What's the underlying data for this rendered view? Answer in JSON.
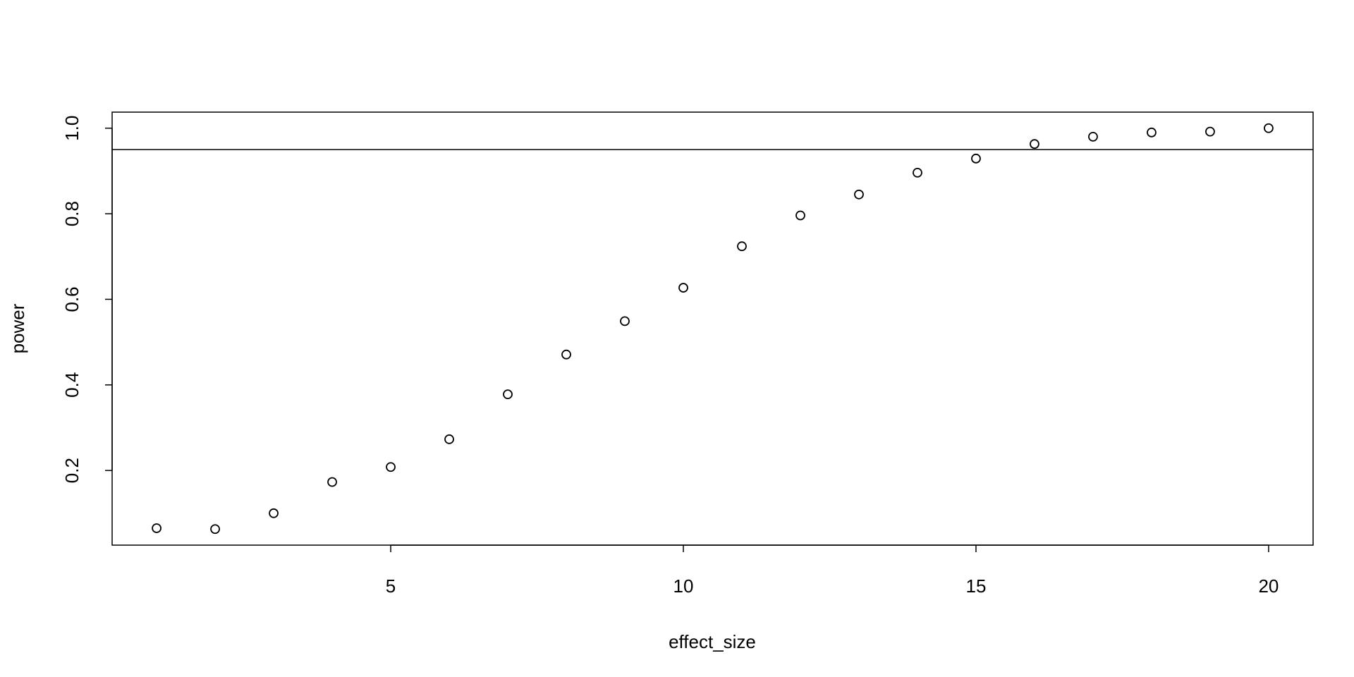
{
  "chart_data": {
    "type": "scatter",
    "x_label": "effect_size",
    "y_label": "power",
    "x": [
      1,
      2,
      3,
      4,
      5,
      6,
      7,
      8,
      9,
      10,
      11,
      12,
      13,
      14,
      15,
      16,
      17,
      18,
      19,
      20
    ],
    "values": [
      0.065,
      0.063,
      0.1,
      0.173,
      0.208,
      0.273,
      0.378,
      0.471,
      0.549,
      0.627,
      0.724,
      0.796,
      0.845,
      0.896,
      0.929,
      0.963,
      0.98,
      0.99,
      0.992,
      1.0
    ],
    "color": "#000000",
    "reference_line": 0.95,
    "xlim": [
      0.24,
      20.76
    ],
    "ylim": [
      0.0255,
      1.0375
    ],
    "xticks": [
      5,
      10,
      15,
      20
    ],
    "yticks": [
      0.2,
      0.4,
      0.6,
      0.8,
      {
        "value": 1,
        "label": "1.0"
      }
    ]
  }
}
